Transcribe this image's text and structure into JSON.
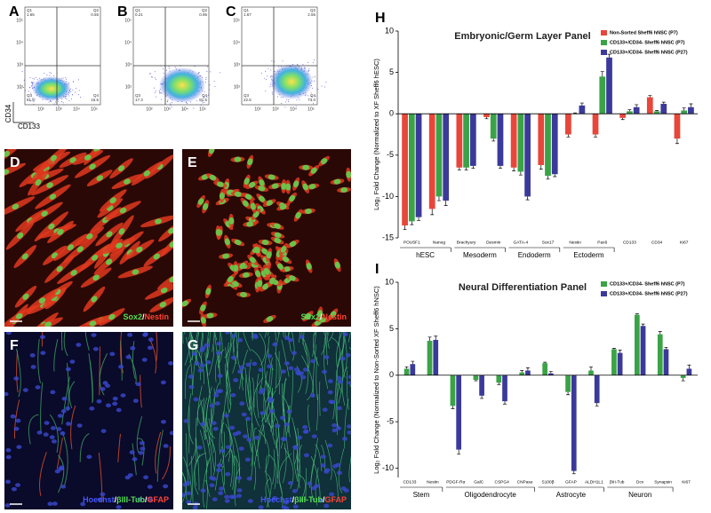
{
  "figure": {
    "flow": {
      "y_label": "CD34",
      "x_label": "CD133",
      "axis_ticks": [
        "10²",
        "10³",
        "10⁴",
        "10⁵"
      ],
      "quadrant_names": [
        "Q1",
        "Q2",
        "Q3",
        "Q4"
      ],
      "panels": [
        {
          "label": "A",
          "quadrants": [
            "1.65",
            "0.55",
            "81.6",
            "16.6"
          ]
        },
        {
          "label": "B",
          "quadrants": [
            "0.21",
            "0.95",
            "17.3",
            "81.5"
          ]
        },
        {
          "label": "C",
          "quadrants": [
            "1.67",
            "2.55",
            "22.5",
            "73.0"
          ]
        }
      ]
    },
    "micrographs": [
      {
        "label": "D",
        "stain": [
          {
            "text": "Sox2",
            "color": "#55dd55"
          },
          {
            "text": "/",
            "color": "#ffffff"
          },
          {
            "text": "Nestin",
            "color": "#ff4433"
          }
        ]
      },
      {
        "label": "E",
        "stain": [
          {
            "text": "Sox2",
            "color": "#55dd55"
          },
          {
            "text": "/",
            "color": "#ffffff"
          },
          {
            "text": "Nestin",
            "color": "#ff4433"
          }
        ]
      },
      {
        "label": "F",
        "stain": [
          {
            "text": "Hoechst",
            "color": "#4455ff"
          },
          {
            "text": "/",
            "color": "#ffffff"
          },
          {
            "text": "βIII-Tub",
            "color": "#55dd55"
          },
          {
            "text": "/",
            "color": "#ffffff"
          },
          {
            "text": "GFAP",
            "color": "#ff4433"
          }
        ]
      },
      {
        "label": "G",
        "stain": [
          {
            "text": "Hoechst",
            "color": "#4455ff"
          },
          {
            "text": "/",
            "color": "#ffffff"
          },
          {
            "text": "βIII-Tub",
            "color": "#55dd55"
          },
          {
            "text": "/",
            "color": "#ffffff"
          },
          {
            "text": "GFAP",
            "color": "#ff4433"
          }
        ]
      }
    ]
  },
  "chart_data": [
    {
      "type": "bar",
      "panel_label": "H",
      "title": "Embryonic/Germ Layer Panel",
      "y_label": "Log₂ Fold Change (Normalized to XF Sheff6 hESC)",
      "categories": [
        "POU5F1",
        "Nanog",
        "Brachyury",
        "Desmin",
        "GATA-4",
        "Sox17",
        "Nestin",
        "Pax6",
        "CD133",
        "CD34",
        "Ki67"
      ],
      "groups": [
        {
          "label": "hESC",
          "span": 2
        },
        {
          "label": "Mesoderm",
          "span": 2
        },
        {
          "label": "Endoderm",
          "span": 2
        },
        {
          "label": "Ectoderm",
          "span": 2
        }
      ],
      "series": [
        {
          "name": "Non-Sorted Sheff6 hNSC (P7)",
          "color": "#e8463a",
          "values": [
            -13.5,
            -11.5,
            -6.5,
            -0.4,
            -6.5,
            -6.2,
            -2.5,
            -2.5,
            -0.5,
            2,
            -3
          ],
          "errors": [
            0.5,
            0.7,
            0.3,
            0.2,
            0.4,
            0.5,
            0.3,
            0.3,
            0.2,
            0.2,
            0.6
          ]
        },
        {
          "name": "CD133+/CD34- Sheff6 hNSC (P7)",
          "color": "#3aa346",
          "values": [
            -13,
            -10,
            -6.5,
            -3,
            -7,
            -7.5,
            0,
            4.5,
            0.3,
            0.3,
            0.4
          ],
          "errors": [
            0.4,
            0.5,
            0.3,
            0.3,
            0.4,
            0.4,
            0.1,
            0.6,
            0.2,
            0.1,
            0.3
          ]
        },
        {
          "name": "CD133+/CD34- Sheff6 hNSC (P27)",
          "color": "#3b3a9b",
          "values": [
            -12.5,
            -10.5,
            -6.3,
            -6.3,
            -10,
            -7.3,
            1,
            6.8,
            0.8,
            1.2,
            0.8
          ],
          "errors": [
            0.4,
            0.6,
            0.3,
            0.3,
            0.4,
            0.3,
            0.3,
            0.4,
            0.3,
            0.2,
            0.4
          ]
        }
      ],
      "ylim": [
        -15,
        10
      ],
      "yticks": [
        -15,
        -10,
        -5,
        0,
        5,
        10
      ],
      "legend": "upper right"
    },
    {
      "type": "bar",
      "panel_label": "I",
      "title": "Neural Differentiation Panel",
      "y_label": "Log₂ Fold Change (Normalized to Non-Sorted XF Sheff6 hNSC)",
      "categories": [
        "CD133",
        "Nestin",
        "PDGF-Rα",
        "GalC",
        "CSPG4",
        "CNPase",
        "S100β",
        "GFAP",
        "ALDH1L1",
        "βIII-Tub",
        "Dcx",
        "Synapsin",
        "Ki67"
      ],
      "groups": [
        {
          "label": "Stem",
          "span": 2
        },
        {
          "label": "Oligodendrocyte",
          "span": 4
        },
        {
          "label": "Astrocyte",
          "span": 3
        },
        {
          "label": "Neuron",
          "span": 3
        }
      ],
      "series": [
        {
          "name": "CD133+/CD34- Sheff6 hNSC (P7)",
          "color": "#3aa346",
          "values": [
            0.7,
            3.7,
            -3.3,
            -0.5,
            -0.8,
            0.3,
            1.3,
            -1.8,
            0.5,
            2.8,
            6.5,
            4.4,
            -0.3
          ],
          "errors": [
            0.2,
            0.4,
            0.3,
            0.1,
            0.2,
            0.2,
            0.1,
            0.3,
            0.4,
            0.1,
            0.1,
            0.3,
            0.3
          ]
        },
        {
          "name": "CD133+/CD34- Sheff6 hNSC (P27)",
          "color": "#3b3a9b",
          "values": [
            1.2,
            3.8,
            -8,
            -2.2,
            -2.8,
            0.5,
            0.2,
            -10.3,
            -3,
            2.4,
            5.3,
            2.8,
            0.7
          ],
          "errors": [
            0.3,
            0.4,
            0.5,
            0.3,
            0.3,
            0.3,
            0.2,
            0.3,
            0.3,
            0.3,
            0.2,
            0.2,
            0.4
          ]
        }
      ],
      "ylim": [
        -11,
        10
      ],
      "yticks": [
        -10,
        -5,
        0,
        5,
        10
      ],
      "legend": "upper right"
    }
  ]
}
